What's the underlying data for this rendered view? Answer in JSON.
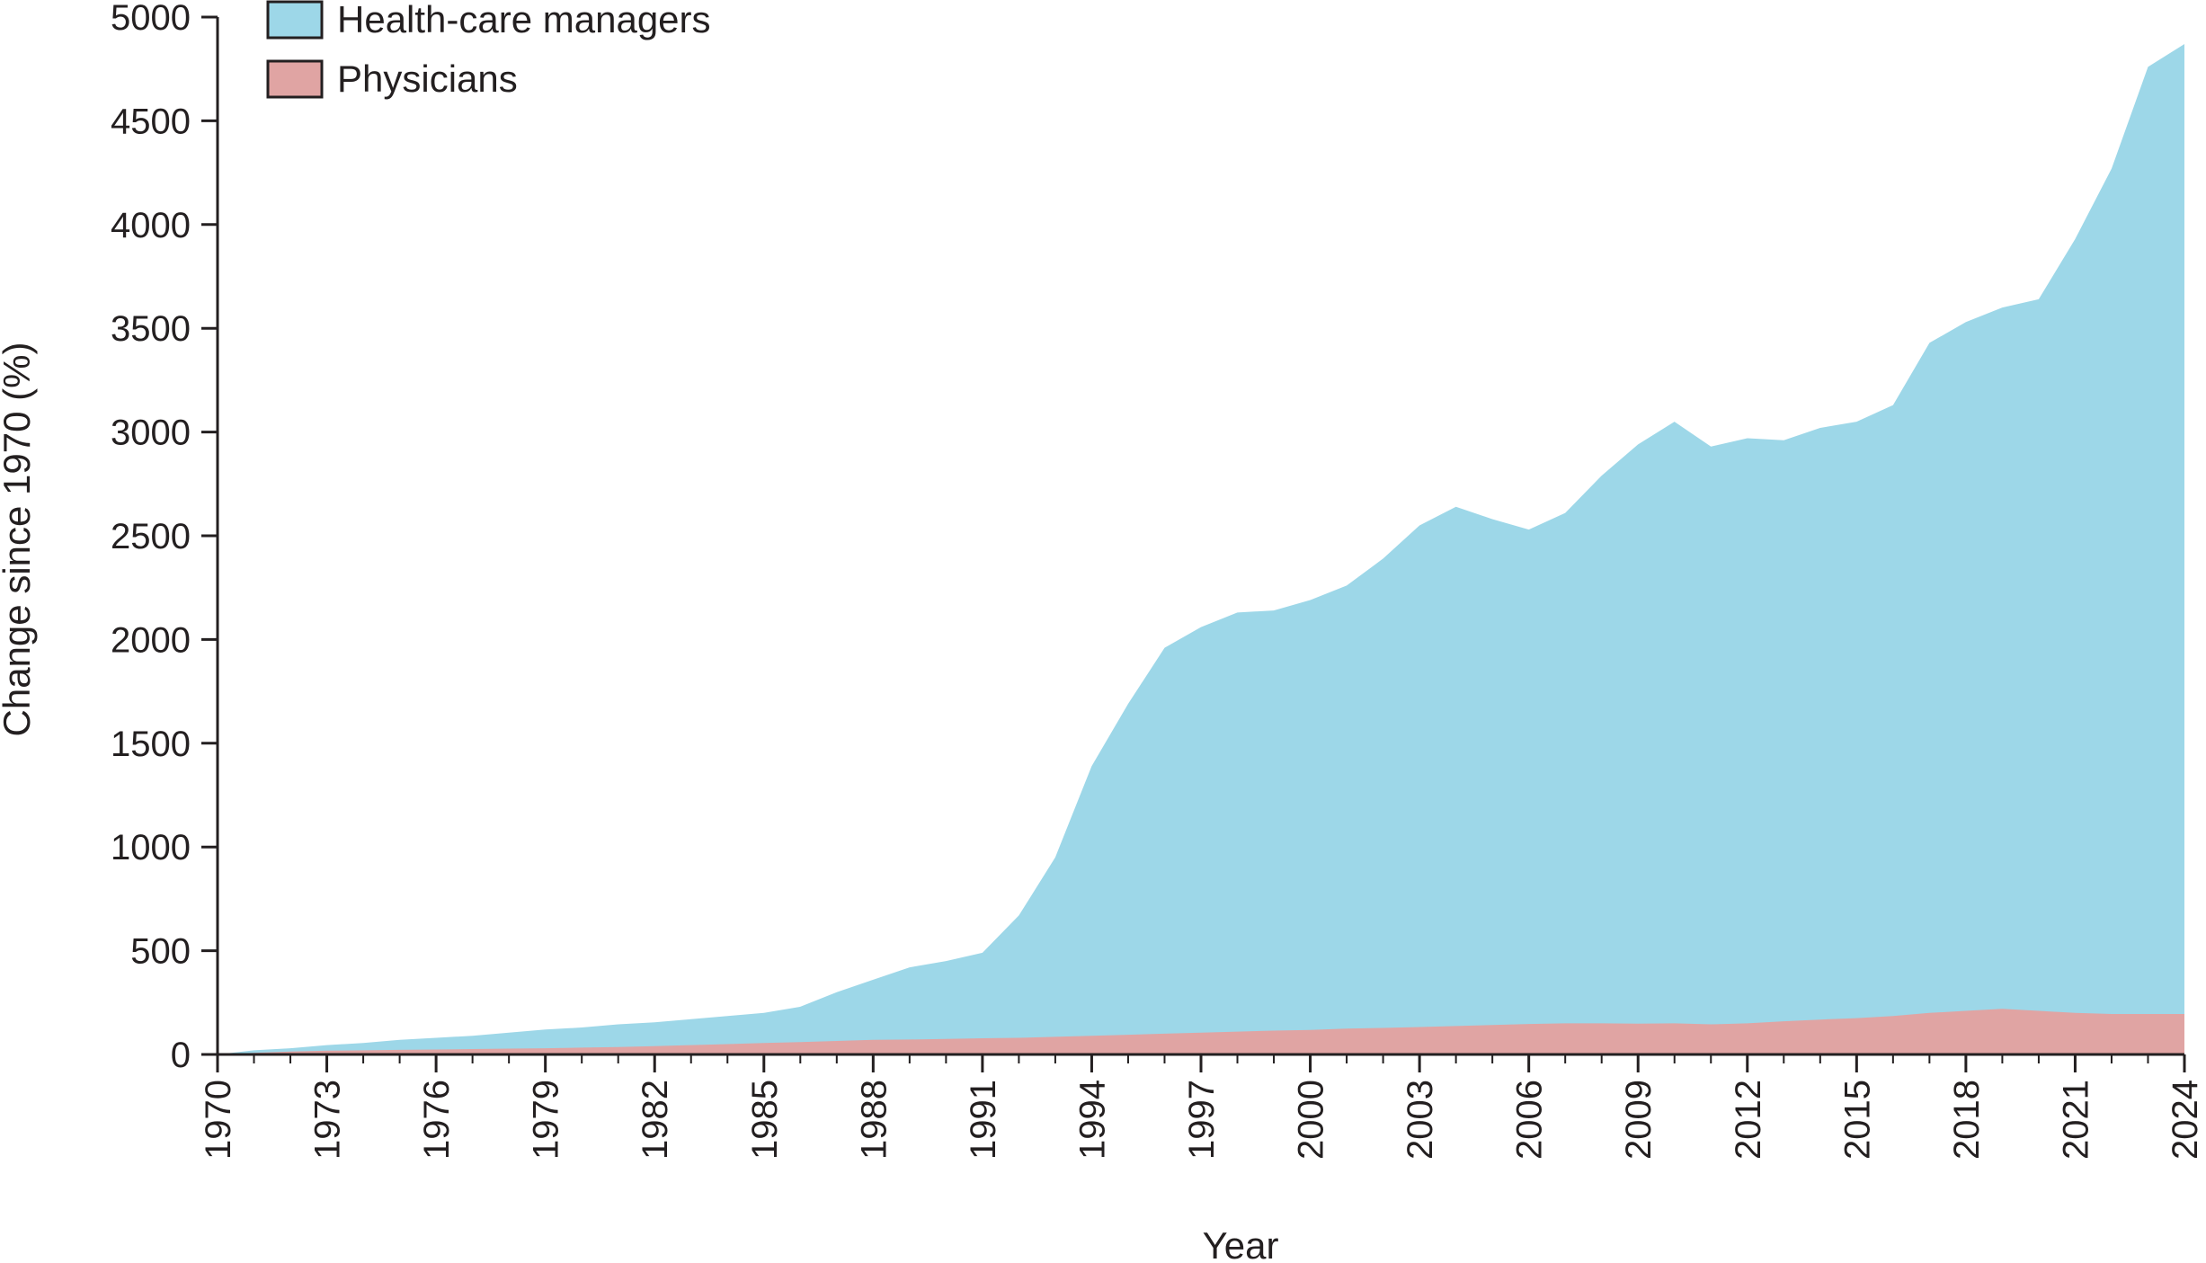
{
  "chart_data": {
    "type": "area",
    "title": "",
    "xlabel": "Year",
    "ylabel": "Change since 1970 (%)",
    "xlim": [
      1970,
      2024
    ],
    "ylim": [
      0,
      5000
    ],
    "y_ticks": [
      0,
      500,
      1000,
      1500,
      2000,
      2500,
      3000,
      3500,
      4000,
      4500,
      5000
    ],
    "y_tick_labels": [
      "0",
      "500",
      "1000",
      "1500",
      "2000",
      "2500",
      "3000",
      "3500",
      "4000",
      "4500",
      "5000"
    ],
    "x_ticks": [
      1970,
      1973,
      1976,
      1979,
      1982,
      1985,
      1988,
      1991,
      1994,
      1997,
      2000,
      2003,
      2006,
      2009,
      2012,
      2015,
      2018,
      2021,
      2024
    ],
    "x_tick_labels": [
      "1970",
      "1973",
      "1976",
      "1979",
      "1982",
      "1985",
      "1988",
      "1991",
      "1994",
      "1997",
      "2000",
      "2003",
      "2006",
      "2009",
      "2012",
      "2015",
      "2018",
      "2021",
      "2024"
    ],
    "grid": false,
    "legend_position": "top-left",
    "x": [
      1970,
      1971,
      1972,
      1973,
      1974,
      1975,
      1976,
      1977,
      1978,
      1979,
      1980,
      1981,
      1982,
      1983,
      1984,
      1985,
      1986,
      1987,
      1988,
      1989,
      1990,
      1991,
      1992,
      1993,
      1994,
      1995,
      1996,
      1997,
      1998,
      1999,
      2000,
      2001,
      2002,
      2003,
      2004,
      2005,
      2006,
      2007,
      2008,
      2009,
      2010,
      2011,
      2012,
      2013,
      2014,
      2015,
      2016,
      2017,
      2018,
      2019,
      2020,
      2021,
      2022,
      2023,
      2024
    ],
    "series": [
      {
        "name": "Health-care managers",
        "color": "#9dd7e8",
        "legend_swatch_color": "#9dd7e8",
        "values": [
          0,
          20,
          30,
          45,
          55,
          70,
          80,
          90,
          105,
          120,
          130,
          145,
          155,
          170,
          185,
          200,
          230,
          300,
          360,
          420,
          450,
          490,
          670,
          950,
          1390,
          1690,
          1960,
          2060,
          2130,
          2140,
          2190,
          2260,
          2390,
          2550,
          2640,
          2580,
          2530,
          2610,
          2790,
          2940,
          3050,
          2930,
          2970,
          2960,
          3020,
          3050,
          3130,
          3430,
          3530,
          3600,
          3640,
          3930,
          4270,
          4760,
          4870
        ]
      },
      {
        "name": "Physicians",
        "color": "#e0a4a3",
        "legend_swatch_color": "#e0a4a3",
        "values": [
          0,
          8,
          14,
          18,
          20,
          22,
          24,
          26,
          28,
          30,
          33,
          36,
          40,
          45,
          50,
          55,
          60,
          65,
          70,
          72,
          75,
          78,
          80,
          85,
          90,
          95,
          100,
          105,
          110,
          115,
          118,
          125,
          128,
          132,
          137,
          142,
          147,
          150,
          150,
          148,
          150,
          145,
          150,
          160,
          168,
          175,
          185,
          200,
          210,
          220,
          210,
          200,
          195,
          195,
          195
        ]
      }
    ]
  }
}
